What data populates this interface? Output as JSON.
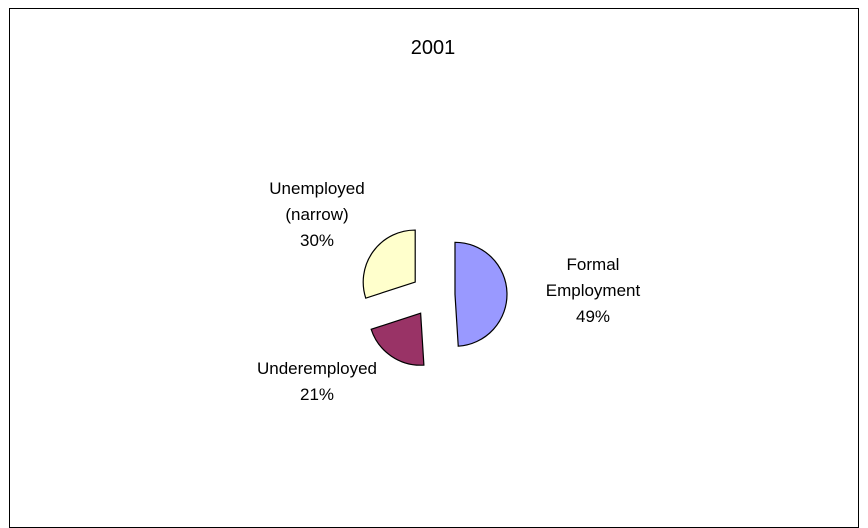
{
  "chart_data": {
    "type": "pie",
    "title": "2001",
    "exploded": true,
    "legend": "none",
    "slices": [
      {
        "label_lines": [
          "Formal",
          "Employment"
        ],
        "percent_label": "49%",
        "value": 49,
        "color": "#9999ff"
      },
      {
        "label_lines": [
          "Underemployed"
        ],
        "percent_label": "21%",
        "value": 21,
        "color": "#993366"
      },
      {
        "label_lines": [
          "Unemployed",
          "(narrow)"
        ],
        "percent_label": "30%",
        "value": 30,
        "color": "#ffffcc"
      }
    ]
  }
}
